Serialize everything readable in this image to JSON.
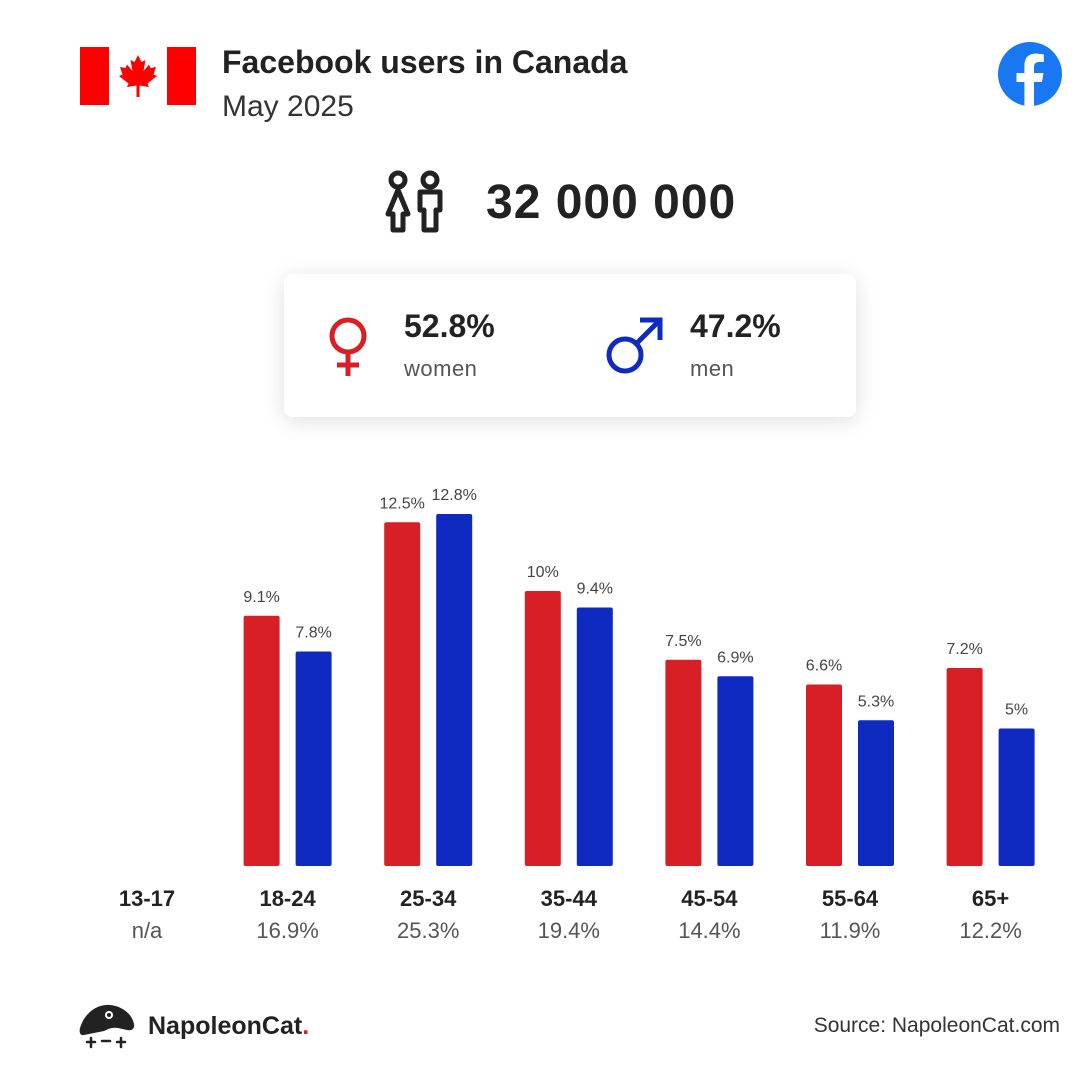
{
  "header": {
    "title": "Facebook users in Canada",
    "subtitle": "May 2025",
    "flag_icon": "canada-flag-icon",
    "platform_icon": "facebook-icon"
  },
  "total": {
    "value": "32 000 000",
    "icon": "people-icon"
  },
  "gender": {
    "women": {
      "pct": "52.8%",
      "label": "women",
      "icon": "female-symbol-icon",
      "color": "#d91f26"
    },
    "men": {
      "pct": "47.2%",
      "label": "men",
      "icon": "male-symbol-icon",
      "color": "#0f2ac1"
    }
  },
  "chart_data": {
    "type": "bar",
    "categories": [
      "13-17",
      "18-24",
      "25-34",
      "35-44",
      "45-54",
      "55-64",
      "65+"
    ],
    "category_shares": [
      "n/a",
      "16.9%",
      "25.3%",
      "19.4%",
      "14.4%",
      "11.9%",
      "12.2%"
    ],
    "series": [
      {
        "color": "#d91f26",
        "values": [
          null,
          9.1,
          12.5,
          10,
          7.5,
          6.6,
          7.2
        ],
        "labels": [
          "",
          "9.1%",
          "12.5%",
          "10%",
          "7.5%",
          "6.6%",
          "7.2%"
        ]
      },
      {
        "color": "#0f2ac1",
        "values": [
          null,
          7.8,
          12.8,
          9.4,
          6.9,
          5.3,
          5
        ],
        "labels": [
          "",
          "7.8%",
          "12.8%",
          "9.4%",
          "6.9%",
          "5.3%",
          "5%"
        ]
      }
    ],
    "ylim": [
      0,
      12.8
    ],
    "grid": false,
    "legend": "none"
  },
  "footer": {
    "brand_name": "NapoleonCat",
    "brand_dot": ".",
    "brand_icon": "napoleoncat-logo-icon",
    "source": "Source: NapoleonCat.com"
  }
}
